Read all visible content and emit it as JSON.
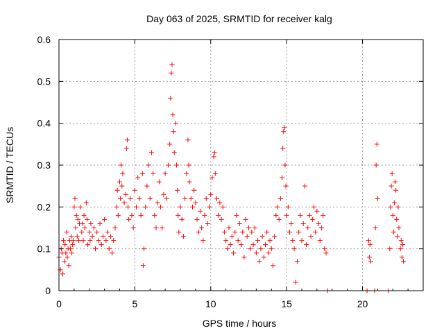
{
  "chart_data": {
    "type": "scatter",
    "title": "Day 063 of 2025, SRMTID for receiver kalg",
    "xlabel": "GPS time / hours",
    "ylabel": "SRMTID / TECUs",
    "xlim": [
      0,
      24
    ],
    "ylim": [
      0,
      0.6
    ],
    "xticks": [
      0,
      5,
      10,
      15,
      20
    ],
    "yticks": [
      0,
      0.1,
      0.2,
      0.3,
      0.4,
      0.5,
      0.6
    ],
    "xtick_labels": [
      "0",
      "5",
      "10",
      "15",
      "20"
    ],
    "ytick_labels": [
      "0",
      "0.1",
      "0.2",
      "0.3",
      "0.4",
      "0.5",
      "0.6"
    ],
    "grid": true,
    "marker": "+",
    "marker_color": "#ff0000",
    "series": [
      {
        "name": "SRMTID",
        "points": [
          [
            0.0,
            0.08
          ],
          [
            0.1,
            0.05
          ],
          [
            0.15,
            0.1
          ],
          [
            0.2,
            0.09
          ],
          [
            0.25,
            0.04
          ],
          [
            0.3,
            0.12
          ],
          [
            0.35,
            0.07
          ],
          [
            0.4,
            0.11
          ],
          [
            0.45,
            0.09
          ],
          [
            0.5,
            0.14
          ],
          [
            0.55,
            0.08
          ],
          [
            0.6,
            0.1
          ],
          [
            0.65,
            0.06
          ],
          [
            0.7,
            0.12
          ],
          [
            0.75,
            0.1
          ],
          [
            0.8,
            0.13
          ],
          [
            0.85,
            0.09
          ],
          [
            0.9,
            0.11
          ],
          [
            0.95,
            0.12
          ],
          [
            1.0,
            0.2
          ],
          [
            1.05,
            0.22
          ],
          [
            1.1,
            0.15
          ],
          [
            1.15,
            0.18
          ],
          [
            1.2,
            0.13
          ],
          [
            1.25,
            0.17
          ],
          [
            1.3,
            0.12
          ],
          [
            1.35,
            0.16
          ],
          [
            1.4,
            0.2
          ],
          [
            1.5,
            0.14
          ],
          [
            1.55,
            0.16
          ],
          [
            1.6,
            0.12
          ],
          [
            1.65,
            0.18
          ],
          [
            1.7,
            0.15
          ],
          [
            1.8,
            0.21
          ],
          [
            1.85,
            0.17
          ],
          [
            1.9,
            0.11
          ],
          [
            2.0,
            0.14
          ],
          [
            2.05,
            0.12
          ],
          [
            2.1,
            0.16
          ],
          [
            2.2,
            0.13
          ],
          [
            2.3,
            0.15
          ],
          [
            2.4,
            0.1
          ],
          [
            2.5,
            0.14
          ],
          [
            2.6,
            0.12
          ],
          [
            2.7,
            0.16
          ],
          [
            2.8,
            0.11
          ],
          [
            2.9,
            0.13
          ],
          [
            3.0,
            0.17
          ],
          [
            3.1,
            0.12
          ],
          [
            3.2,
            0.14
          ],
          [
            3.3,
            0.1
          ],
          [
            3.4,
            0.13
          ],
          [
            3.5,
            0.09
          ],
          [
            3.6,
            0.12
          ],
          [
            3.7,
            0.15
          ],
          [
            3.8,
            0.2
          ],
          [
            3.85,
            0.24
          ],
          [
            3.9,
            0.18
          ],
          [
            4.0,
            0.26
          ],
          [
            4.05,
            0.22
          ],
          [
            4.1,
            0.3
          ],
          [
            4.15,
            0.25
          ],
          [
            4.2,
            0.28
          ],
          [
            4.3,
            0.21
          ],
          [
            4.4,
            0.23
          ],
          [
            4.45,
            0.34
          ],
          [
            4.5,
            0.36
          ],
          [
            4.55,
            0.2
          ],
          [
            4.6,
            0.17
          ],
          [
            4.7,
            0.22
          ],
          [
            4.8,
            0.18
          ],
          [
            4.9,
            0.15
          ],
          [
            5.0,
            0.24
          ],
          [
            5.1,
            0.2
          ],
          [
            5.2,
            0.27
          ],
          [
            5.3,
            0.22
          ],
          [
            5.4,
            0.18
          ],
          [
            5.5,
            0.28
          ],
          [
            5.55,
            0.06
          ],
          [
            5.6,
            0.1
          ],
          [
            5.7,
            0.2
          ],
          [
            5.8,
            0.25
          ],
          [
            5.9,
            0.3
          ],
          [
            6.0,
            0.22
          ],
          [
            6.1,
            0.33
          ],
          [
            6.2,
            0.28
          ],
          [
            6.3,
            0.18
          ],
          [
            6.4,
            0.15
          ],
          [
            6.5,
            0.21
          ],
          [
            6.6,
            0.26
          ],
          [
            6.7,
            0.2
          ],
          [
            6.8,
            0.15
          ],
          [
            6.9,
            0.23
          ],
          [
            7.0,
            0.28
          ],
          [
            7.1,
            0.22
          ],
          [
            7.2,
            0.3
          ],
          [
            7.3,
            0.35
          ],
          [
            7.35,
            0.46
          ],
          [
            7.4,
            0.52
          ],
          [
            7.45,
            0.54
          ],
          [
            7.5,
            0.42
          ],
          [
            7.55,
            0.38
          ],
          [
            7.6,
            0.33
          ],
          [
            7.7,
            0.4
          ],
          [
            7.75,
            0.3
          ],
          [
            7.8,
            0.24
          ],
          [
            7.85,
            0.18
          ],
          [
            7.9,
            0.14
          ],
          [
            8.0,
            0.2
          ],
          [
            8.1,
            0.17
          ],
          [
            8.2,
            0.13
          ],
          [
            8.3,
            0.22
          ],
          [
            8.4,
            0.28
          ],
          [
            8.5,
            0.36
          ],
          [
            8.55,
            0.3
          ],
          [
            8.6,
            0.26
          ],
          [
            8.7,
            0.22
          ],
          [
            8.8,
            0.2
          ],
          [
            8.9,
            0.24
          ],
          [
            9.0,
            0.21
          ],
          [
            9.1,
            0.17
          ],
          [
            9.2,
            0.14
          ],
          [
            9.3,
            0.19
          ],
          [
            9.4,
            0.15
          ],
          [
            9.5,
            0.12
          ],
          [
            9.6,
            0.18
          ],
          [
            9.7,
            0.22
          ],
          [
            9.8,
            0.16
          ],
          [
            9.9,
            0.2
          ],
          [
            10.0,
            0.23
          ],
          [
            10.1,
            0.27
          ],
          [
            10.2,
            0.32
          ],
          [
            10.25,
            0.33
          ],
          [
            10.3,
            0.28
          ],
          [
            10.4,
            0.22
          ],
          [
            10.5,
            0.18
          ],
          [
            10.6,
            0.21
          ],
          [
            10.7,
            0.17
          ],
          [
            10.8,
            0.2
          ],
          [
            10.9,
            0.14
          ],
          [
            11.0,
            0.12
          ],
          [
            11.1,
            0.1
          ],
          [
            11.2,
            0.15
          ],
          [
            11.3,
            0.11
          ],
          [
            11.4,
            0.13
          ],
          [
            11.5,
            0.09
          ],
          [
            11.6,
            0.14
          ],
          [
            11.7,
            0.18
          ],
          [
            11.8,
            0.12
          ],
          [
            11.9,
            0.16
          ],
          [
            12.0,
            0.11
          ],
          [
            12.1,
            0.14
          ],
          [
            12.2,
            0.08
          ],
          [
            12.3,
            0.17
          ],
          [
            12.4,
            0.13
          ],
          [
            12.5,
            0.15
          ],
          [
            12.6,
            0.1
          ],
          [
            12.7,
            0.14
          ],
          [
            12.8,
            0.11
          ],
          [
            12.9,
            0.15
          ],
          [
            13.0,
            0.09
          ],
          [
            13.1,
            0.12
          ],
          [
            13.2,
            0.07
          ],
          [
            13.3,
            0.1
          ],
          [
            13.4,
            0.13
          ],
          [
            13.5,
            0.08
          ],
          [
            13.6,
            0.11
          ],
          [
            13.7,
            0.14
          ],
          [
            13.8,
            0.09
          ],
          [
            13.9,
            0.12
          ],
          [
            14.0,
            0.1
          ],
          [
            14.1,
            0.06
          ],
          [
            14.2,
            0.13
          ],
          [
            14.3,
            0.18
          ],
          [
            14.4,
            0.2
          ],
          [
            14.5,
            0.17
          ],
          [
            14.6,
            0.22
          ],
          [
            14.7,
            0.27
          ],
          [
            14.75,
            0.34
          ],
          [
            14.8,
            0.38
          ],
          [
            14.85,
            0.39
          ],
          [
            14.9,
            0.3
          ],
          [
            14.95,
            0.25
          ],
          [
            15.0,
            0.18
          ],
          [
            15.1,
            0.2
          ],
          [
            15.2,
            0.14
          ],
          [
            15.3,
            0.16
          ],
          [
            15.4,
            0.12
          ],
          [
            15.5,
            0.1
          ],
          [
            15.6,
            0.02
          ],
          [
            15.7,
            0.07
          ],
          [
            15.8,
            0.14
          ],
          [
            15.9,
            0.18
          ],
          [
            16.0,
            0.12
          ],
          [
            16.1,
            0.16
          ],
          [
            16.2,
            0.25
          ],
          [
            16.3,
            0.11
          ],
          [
            16.4,
            0.15
          ],
          [
            16.5,
            0.18
          ],
          [
            16.6,
            0.13
          ],
          [
            16.7,
            0.17
          ],
          [
            16.8,
            0.2
          ],
          [
            16.9,
            0.14
          ],
          [
            17.0,
            0.19
          ],
          [
            17.1,
            0.16
          ],
          [
            17.2,
            0.12
          ],
          [
            17.3,
            0.15
          ],
          [
            17.4,
            0.18
          ],
          [
            17.5,
            0.1
          ],
          [
            17.6,
            0.09
          ],
          [
            17.7,
            0.0
          ],
          [
            20.3,
            0.0
          ],
          [
            20.4,
            0.12
          ],
          [
            20.45,
            0.08
          ],
          [
            20.5,
            0.11
          ],
          [
            20.55,
            0.07
          ],
          [
            20.8,
            0.0
          ],
          [
            20.85,
            0.15
          ],
          [
            20.9,
            0.3
          ],
          [
            20.95,
            0.35
          ],
          [
            21.0,
            0.22
          ],
          [
            21.7,
            0.0
          ],
          [
            21.8,
            0.1
          ],
          [
            21.85,
            0.2
          ],
          [
            21.9,
            0.25
          ],
          [
            21.95,
            0.28
          ],
          [
            22.0,
            0.18
          ],
          [
            22.05,
            0.14
          ],
          [
            22.1,
            0.21
          ],
          [
            22.15,
            0.26
          ],
          [
            22.2,
            0.24
          ],
          [
            22.25,
            0.17
          ],
          [
            22.3,
            0.13
          ],
          [
            22.35,
            0.2
          ],
          [
            22.4,
            0.15
          ],
          [
            22.5,
            0.1
          ],
          [
            22.55,
            0.12
          ],
          [
            22.6,
            0.08
          ],
          [
            22.65,
            0.11
          ],
          [
            22.7,
            0.07
          ]
        ]
      }
    ]
  }
}
